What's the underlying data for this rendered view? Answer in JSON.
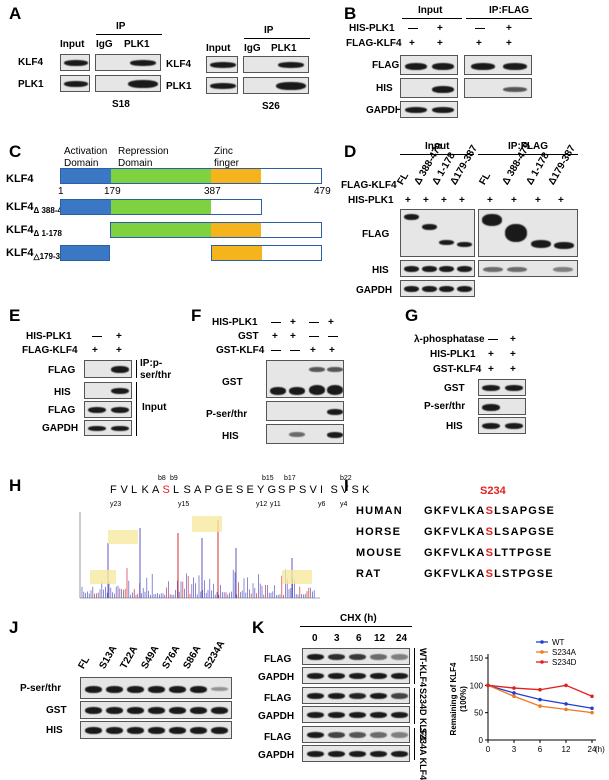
{
  "panels": {
    "A": {
      "letter": "A",
      "ip_label": "IP",
      "lanes": [
        "Input",
        "IgG",
        "PLK1"
      ],
      "rows": [
        "KLF4",
        "PLK1"
      ],
      "cell_lines": [
        "S18",
        "S26"
      ]
    },
    "B": {
      "letter": "B",
      "headers": [
        "Input",
        "IP:FLAG"
      ],
      "rows_top": [
        {
          "label": "HIS-PLK1",
          "marks": [
            "—",
            "+",
            "—",
            "+"
          ]
        },
        {
          "label": "FLAG-KLF4",
          "marks": [
            "+",
            "+",
            "+",
            "+"
          ]
        }
      ],
      "blots": [
        "FLAG",
        "HIS",
        "GAPDH"
      ]
    },
    "C": {
      "letter": "C",
      "protein": "KLF4",
      "domains": [
        "Activation Domain",
        "Repression Domain",
        "Zinc finger"
      ],
      "positions": [
        "1",
        "179",
        "387",
        "479"
      ],
      "constructs": [
        {
          "name": "KLF4",
          "sub": "Δ 388-479"
        },
        {
          "name": "KLF4",
          "sub": "Δ 1-178"
        },
        {
          "name": "KLF4",
          "sub": "△179-387"
        }
      ]
    },
    "D": {
      "letter": "D",
      "headers": [
        "Input",
        "IP:FLAG"
      ],
      "lane_labels": [
        "FL",
        "Δ 388-479",
        "Δ 1-178",
        "Δ179-387"
      ],
      "rows_top": [
        {
          "label": "FLAG-KLF4"
        },
        {
          "label": "HIS-PLK1",
          "marks": [
            "+",
            "+",
            "+",
            "+",
            "+",
            "+",
            "+",
            "+"
          ]
        }
      ],
      "blots": [
        "FLAG",
        "HIS",
        "GAPDH"
      ]
    },
    "E": {
      "letter": "E",
      "rows_top": [
        {
          "label": "HIS-PLK1",
          "marks": [
            "—",
            "+"
          ]
        },
        {
          "label": "FLAG-KLF4",
          "marks": [
            "+",
            "+"
          ]
        }
      ],
      "blots": [
        "FLAG",
        "HIS",
        "FLAG",
        "GAPDH"
      ],
      "group_labels": [
        "IP:p-ser/thr",
        "Input"
      ]
    },
    "F": {
      "letter": "F",
      "rows_top": [
        {
          "label": "HIS-PLK1",
          "marks": [
            "—",
            "+",
            "—",
            "+"
          ]
        },
        {
          "label": "GST",
          "marks": [
            "+",
            "+",
            "—",
            "—"
          ]
        },
        {
          "label": "GST-KLF4",
          "marks": [
            "—",
            "—",
            "+",
            "+"
          ]
        }
      ],
      "blots": [
        "GST",
        "P-ser/thr",
        "HIS"
      ]
    },
    "G": {
      "letter": "G",
      "rows_top": [
        {
          "label": "λ-phosphatase",
          "marks": [
            "—",
            "+"
          ]
        },
        {
          "label": "HIS-PLK1",
          "marks": [
            "+",
            "+"
          ]
        },
        {
          "label": "GST-KLF4",
          "marks": [
            "+",
            "+"
          ]
        }
      ],
      "blots": [
        "GST",
        "P-ser/thr",
        "HIS"
      ]
    },
    "H": {
      "letter": "H",
      "peptide": [
        "F",
        "V",
        "L",
        "K",
        "A",
        "S",
        "L",
        "S",
        "A",
        "P",
        "G",
        "E",
        "S",
        "E",
        "Y",
        "G",
        "S",
        "P",
        "S",
        "V",
        "I",
        "S",
        "V",
        "S",
        "K"
      ],
      "b_ions": [
        "b8",
        "b9",
        "b15",
        "b17",
        "b22"
      ],
      "y_ions": [
        "y23",
        "y15",
        "y12",
        "y11",
        "y6",
        "y4"
      ]
    },
    "I": {
      "letter": "I",
      "site": "S234",
      "species": [
        {
          "name": "HUMAN",
          "pre": "GKFVLKA",
          "site": "S",
          "post": "LSAPGSE"
        },
        {
          "name": "HORSE",
          "pre": "GKFVLKA",
          "site": "S",
          "post": "LSAPGSE"
        },
        {
          "name": "MOUSE",
          "pre": "GKFVLKA",
          "site": "S",
          "post": "LTTPGSE"
        },
        {
          "name": "RAT",
          "pre": "GKFVLKA",
          "site": "S",
          "post": "LSTPGSE"
        }
      ]
    },
    "J": {
      "letter": "J",
      "lanes": [
        "FL",
        "S13A",
        "T22A",
        "S49A",
        "S76A",
        "S86A",
        "S234A"
      ],
      "blots": [
        "P-ser/thr",
        "GST",
        "HIS"
      ]
    },
    "K": {
      "letter": "K",
      "treatment": "CHX (h)",
      "timepoints": [
        "0",
        "3",
        "6",
        "12",
        "24"
      ],
      "blots": [
        "FLAG",
        "GAPDH",
        "FLAG",
        "GAPDH",
        "FLAG",
        "GAPDH"
      ],
      "groups": [
        "WT-KLF4",
        "S234D KLF4",
        "S234A KLF4"
      ]
    }
  },
  "chart_data": {
    "type": "line",
    "x": [
      0,
      3,
      6,
      12,
      24
    ],
    "xticks": [
      "0",
      "3",
      "6",
      "12",
      "24"
    ],
    "x_unit": "(h)",
    "ylabel": "Remaining of KLF4 (100%)",
    "ylim": [
      0,
      150
    ],
    "yticks": [
      0,
      50,
      100,
      150
    ],
    "legend_position": "top-right",
    "series": [
      {
        "name": "WT",
        "color": "#1f3fd1",
        "values": [
          100,
          86,
          74,
          66,
          58
        ]
      },
      {
        "name": "S234A",
        "color": "#f07820",
        "values": [
          100,
          80,
          62,
          56,
          50
        ]
      },
      {
        "name": "S234D",
        "color": "#e0211f",
        "values": [
          100,
          95,
          92,
          100,
          80
        ]
      }
    ]
  }
}
